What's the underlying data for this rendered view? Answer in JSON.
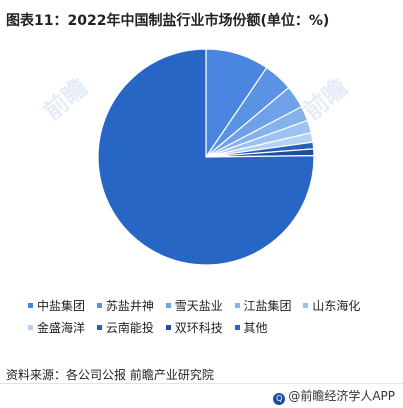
{
  "title": "图表11：2022年中国制盐行业市场份额(单位：%)",
  "source": "资料来源：各公司公报 前瞻产业研究院",
  "footer": {
    "brand": "@前瞻经济学人APP",
    "icon_name": "qianzhan-logo-icon"
  },
  "watermark": "前瞻",
  "chart_data": {
    "type": "pie",
    "title": "图表11：2022年中国制盐行业市场份额(单位：%)",
    "categories": [
      "中盐集团",
      "苏盐井神",
      "雪天盐业",
      "江盐集团",
      "山东海化",
      "金盛海洋",
      "云南能投",
      "双环科技",
      "其他"
    ],
    "values": [
      9.5,
      4.4,
      3.4,
      2.2,
      1.9,
      1.4,
      1.0,
      1.0,
      75.2
    ],
    "colors": [
      "#4a86e0",
      "#5b93e4",
      "#6fa1e8",
      "#86b2ec",
      "#9dc2f0",
      "#b5d2f4",
      "#2a5fb8",
      "#1f4e9c",
      "#2866c6"
    ],
    "legend_position": "bottom",
    "start_angle_deg": 0,
    "direction": "clockwise"
  }
}
